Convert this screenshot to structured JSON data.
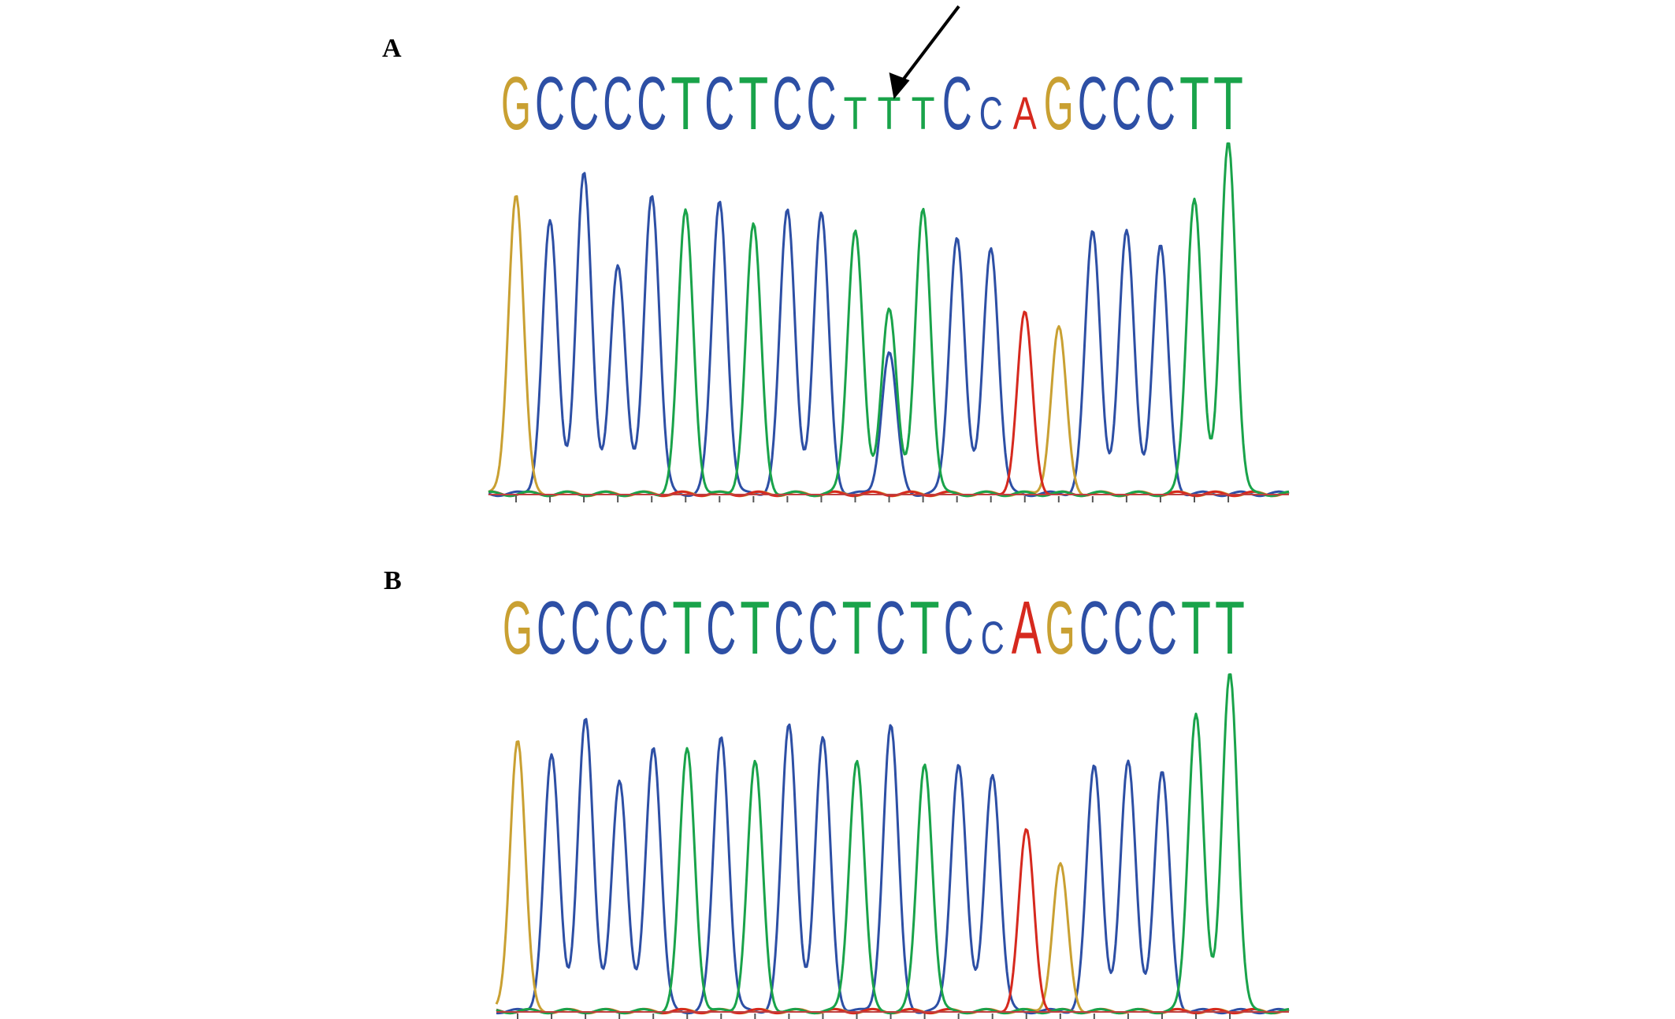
{
  "figure": {
    "colors": {
      "A": "#d6291e",
      "C": "#2d4fa5",
      "G": "#c9a032",
      "T": "#19a34a",
      "baseline": "#555555",
      "arrow": "#000000"
    }
  },
  "chart_data": [
    {
      "type": "line",
      "panel_label": "A",
      "sequence": [
        "G",
        "C",
        "C",
        "C",
        "C",
        "T",
        "C",
        "T",
        "C",
        "C",
        "T",
        "T",
        "T",
        "C",
        "C",
        "A",
        "G",
        "C",
        "C",
        "C",
        "T",
        "T"
      ],
      "small_bases": [
        10,
        11,
        12,
        14,
        15
      ],
      "arrow_at_base": 11,
      "series": [
        {
          "base": "G",
          "peaks": [
            {
              "pos": 0,
              "height": 0.85
            },
            {
              "pos": 16,
              "height": 0.47
            }
          ]
        },
        {
          "base": "C",
          "peaks": [
            {
              "pos": 1,
              "height": 0.77
            },
            {
              "pos": 2,
              "height": 0.91
            },
            {
              "pos": 3,
              "height": 0.65
            },
            {
              "pos": 4,
              "height": 0.85
            },
            {
              "pos": 6,
              "height": 0.83
            },
            {
              "pos": 8,
              "height": 0.8
            },
            {
              "pos": 9,
              "height": 0.79
            },
            {
              "pos": 11,
              "height": 0.4
            },
            {
              "pos": 13,
              "height": 0.73
            },
            {
              "pos": 14,
              "height": 0.7
            },
            {
              "pos": 17,
              "height": 0.74
            },
            {
              "pos": 18,
              "height": 0.74
            },
            {
              "pos": 19,
              "height": 0.7
            }
          ]
        },
        {
          "base": "T",
          "peaks": [
            {
              "pos": 5,
              "height": 0.8
            },
            {
              "pos": 7,
              "height": 0.76
            },
            {
              "pos": 10,
              "height": 0.75
            },
            {
              "pos": 11,
              "height": 0.53
            },
            {
              "pos": 12,
              "height": 0.81
            },
            {
              "pos": 20,
              "height": 0.84
            },
            {
              "pos": 21,
              "height": 1.0
            }
          ]
        },
        {
          "base": "A",
          "peaks": [
            {
              "pos": 15,
              "height": 0.51
            }
          ]
        }
      ]
    },
    {
      "type": "line",
      "panel_label": "B",
      "sequence": [
        "G",
        "C",
        "C",
        "C",
        "C",
        "T",
        "C",
        "T",
        "C",
        "C",
        "T",
        "C",
        "T",
        "C",
        "C",
        "A",
        "G",
        "C",
        "C",
        "C",
        "T",
        "T"
      ],
      "small_bases": [
        14
      ],
      "series": [
        {
          "base": "G",
          "peaks": [
            {
              "pos": 0,
              "height": 0.8
            },
            {
              "pos": 16,
              "height": 0.43
            }
          ]
        },
        {
          "base": "C",
          "peaks": [
            {
              "pos": 1,
              "height": 0.75
            },
            {
              "pos": 2,
              "height": 0.86
            },
            {
              "pos": 3,
              "height": 0.68
            },
            {
              "pos": 4,
              "height": 0.78
            },
            {
              "pos": 6,
              "height": 0.81
            },
            {
              "pos": 8,
              "height": 0.84
            },
            {
              "pos": 9,
              "height": 0.8
            },
            {
              "pos": 11,
              "height": 0.84
            },
            {
              "pos": 13,
              "height": 0.73
            },
            {
              "pos": 14,
              "height": 0.7
            },
            {
              "pos": 17,
              "height": 0.72
            },
            {
              "pos": 18,
              "height": 0.73
            },
            {
              "pos": 19,
              "height": 0.7
            }
          ]
        },
        {
          "base": "T",
          "peaks": [
            {
              "pos": 5,
              "height": 0.77
            },
            {
              "pos": 7,
              "height": 0.73
            },
            {
              "pos": 10,
              "height": 0.74
            },
            {
              "pos": 12,
              "height": 0.73
            },
            {
              "pos": 20,
              "height": 0.88
            },
            {
              "pos": 21,
              "height": 1.0
            }
          ]
        },
        {
          "base": "A",
          "peaks": [
            {
              "pos": 15,
              "height": 0.53
            }
          ]
        }
      ]
    }
  ]
}
